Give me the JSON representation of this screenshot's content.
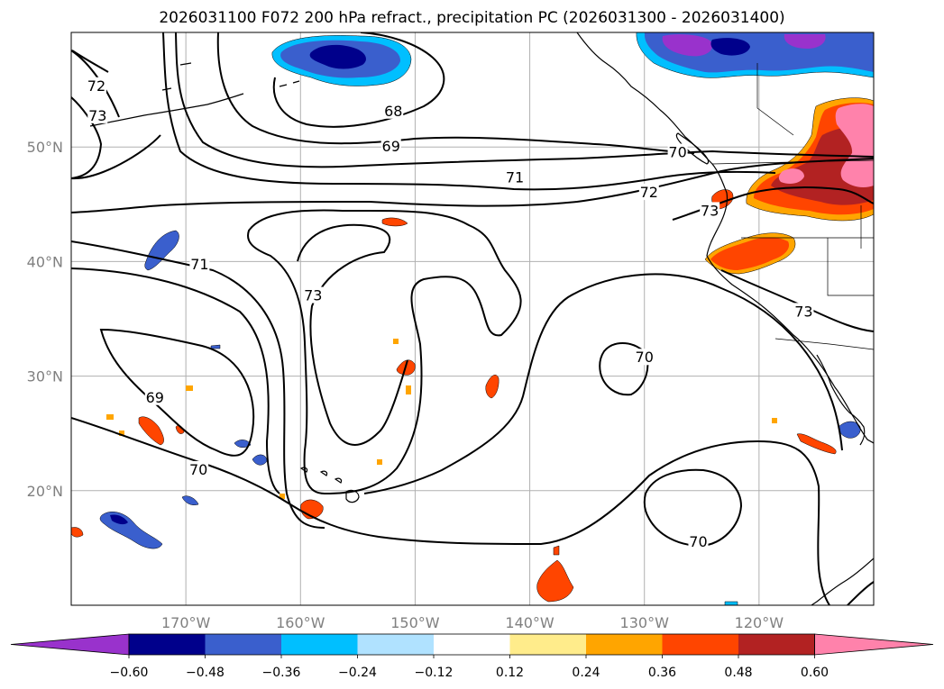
{
  "title": "2026031100 F072 200 hPa refract., precipitation PC (2026031300 - 2026031400)",
  "map": {
    "lon_range": [
      -180,
      -110
    ],
    "lat_range": [
      10,
      60
    ],
    "lat_ticks": [
      {
        "value": 50,
        "label": "50°N"
      },
      {
        "value": 40,
        "label": "40°N"
      },
      {
        "value": 30,
        "label": "30°N"
      },
      {
        "value": 20,
        "label": "20°N"
      }
    ],
    "lon_ticks": [
      {
        "value": -170,
        "label": "170°W"
      },
      {
        "value": -160,
        "label": "160°W"
      },
      {
        "value": -150,
        "label": "150°W"
      },
      {
        "value": -140,
        "label": "140°W"
      },
      {
        "value": -130,
        "label": "130°W"
      },
      {
        "value": -120,
        "label": "120°W"
      }
    ],
    "grid": true,
    "contour_labels": [
      {
        "text": "72",
        "lon": -177.8,
        "lat": 55.3
      },
      {
        "text": "73",
        "lon": -177.7,
        "lat": 52.7
      },
      {
        "text": "68",
        "lon": -151.9,
        "lat": 53.1
      },
      {
        "text": "69",
        "lon": -152.1,
        "lat": 50.0
      },
      {
        "text": "70",
        "lon": -127.1,
        "lat": 49.5
      },
      {
        "text": "71",
        "lon": -141.3,
        "lat": 47.3
      },
      {
        "text": "72",
        "lon": -129.6,
        "lat": 46.0
      },
      {
        "text": "73",
        "lon": -124.3,
        "lat": 44.4
      },
      {
        "text": "71",
        "lon": -168.8,
        "lat": 39.7
      },
      {
        "text": "73",
        "lon": -158.9,
        "lat": 37.0
      },
      {
        "text": "73",
        "lon": -116.1,
        "lat": 35.6
      },
      {
        "text": "70",
        "lon": -130.0,
        "lat": 31.6
      },
      {
        "text": "69",
        "lon": -172.7,
        "lat": 28.1
      },
      {
        "text": "70",
        "lon": -168.9,
        "lat": 21.8
      },
      {
        "text": "70",
        "lon": -125.3,
        "lat": 15.5
      }
    ]
  },
  "colorbar": {
    "colors": [
      "#9932cc",
      "#00008b",
      "#3a5fcd",
      "#00bfff",
      "#b0e2ff",
      "#ffffff",
      "#ffec8b",
      "#ffa500",
      "#ff4500",
      "#b22222",
      "#ff82ab"
    ],
    "tick_labels": [
      "−0.60",
      "−0.48",
      "−0.36",
      "−0.24",
      "−0.12",
      "0.12",
      "0.24",
      "0.36",
      "0.48",
      "0.60"
    ]
  }
}
